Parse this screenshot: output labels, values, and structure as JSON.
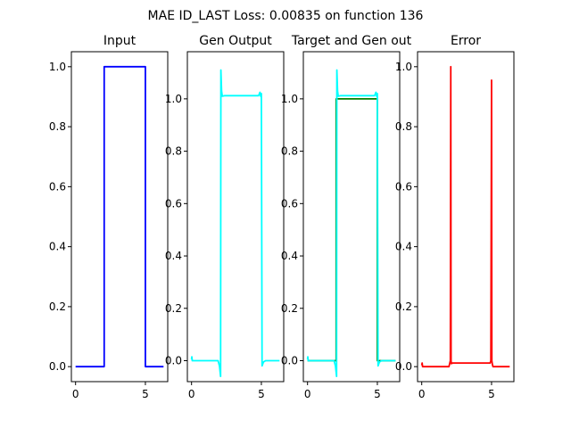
{
  "suptitle": "MAE ID_LAST Loss: 0.00835 on function 136",
  "chart_data": [
    {
      "type": "line",
      "title": "Input",
      "xlim": [
        -0.3,
        6.6
      ],
      "ylim": [
        -0.05,
        1.05
      ],
      "xticks": [
        0,
        5
      ],
      "yticks": [
        0.0,
        0.2,
        0.4,
        0.6,
        0.8,
        1.0
      ],
      "ytick_labels": [
        "0.0",
        "0.2",
        "0.4",
        "0.6",
        "0.8",
        "1.0"
      ],
      "series": [
        {
          "color": "#0000ff",
          "x": [
            0,
            2.05,
            2.05,
            5.0,
            5.0,
            6.3
          ],
          "y": [
            0,
            0,
            1,
            1,
            0,
            0
          ]
        }
      ]
    },
    {
      "type": "line",
      "title": "Gen Output",
      "xlim": [
        -0.3,
        6.6
      ],
      "ylim": [
        -0.08,
        1.18
      ],
      "xticks": [
        0,
        5
      ],
      "yticks": [
        0.0,
        0.2,
        0.4,
        0.6,
        0.8,
        1.0
      ],
      "ytick_labels": [
        "0.0",
        "0.2",
        "0.4",
        "0.6",
        "0.8",
        "1.0"
      ],
      "series": [
        {
          "color": "#00ffff",
          "x": [
            0,
            0.02,
            0.05,
            1.9,
            2.0,
            2.08,
            2.1,
            2.15,
            2.2,
            2.35,
            4.8,
            4.9,
            4.95,
            5.0,
            5.05,
            5.15,
            5.3,
            6.3
          ],
          "y": [
            0.005,
            0.015,
            0.0,
            0.0,
            -0.02,
            -0.06,
            1.11,
            1.03,
            1.01,
            1.012,
            1.012,
            1.025,
            1.01,
            1.02,
            -0.02,
            -0.005,
            0.0,
            0.0
          ]
        }
      ]
    },
    {
      "type": "line",
      "title": "Target and Gen out",
      "xlim": [
        -0.3,
        6.6
      ],
      "ylim": [
        -0.08,
        1.18
      ],
      "xticks": [
        0,
        5
      ],
      "yticks": [
        0.0,
        0.2,
        0.4,
        0.6,
        0.8,
        1.0
      ],
      "ytick_labels": [
        "0.0",
        "0.2",
        "0.4",
        "0.6",
        "0.8",
        "1.0"
      ],
      "series": [
        {
          "color": "#008000",
          "x": [
            0,
            2.05,
            2.05,
            5.0,
            5.0,
            6.3
          ],
          "y": [
            0,
            0,
            1,
            1,
            0,
            0
          ]
        },
        {
          "color": "#00ffff",
          "x": [
            0,
            0.02,
            0.05,
            1.9,
            2.0,
            2.08,
            2.1,
            2.15,
            2.2,
            2.35,
            4.8,
            4.9,
            4.95,
            5.0,
            5.05,
            5.15,
            5.3,
            6.3
          ],
          "y": [
            0.005,
            0.015,
            0.0,
            0.0,
            -0.02,
            -0.06,
            1.11,
            1.03,
            1.01,
            1.012,
            1.012,
            1.025,
            1.01,
            1.02,
            -0.02,
            -0.005,
            0.0,
            0.0
          ]
        }
      ]
    },
    {
      "type": "line",
      "title": "Error",
      "xlim": [
        -0.3,
        6.6
      ],
      "ylim": [
        -0.05,
        1.05
      ],
      "xticks": [
        0,
        5
      ],
      "yticks": [
        0.0,
        0.2,
        0.4,
        0.6,
        0.8,
        1.0
      ],
      "ytick_labels": [
        "0.0",
        "0.2",
        "0.4",
        "0.6",
        "0.8",
        "1.0"
      ],
      "series": [
        {
          "color": "#ff0000",
          "x": [
            0,
            0.03,
            0.06,
            1.95,
            2.0,
            2.05,
            2.08,
            2.1,
            2.12,
            2.2,
            4.9,
            4.95,
            5.0,
            5.02,
            5.05,
            5.1,
            6.3
          ],
          "y": [
            0.005,
            0.012,
            0.0,
            0.0,
            0.01,
            0.02,
            1.0,
            0.02,
            0.01,
            0.012,
            0.012,
            0.02,
            0.955,
            0.02,
            0.01,
            0.0,
            0.0
          ]
        }
      ]
    }
  ]
}
